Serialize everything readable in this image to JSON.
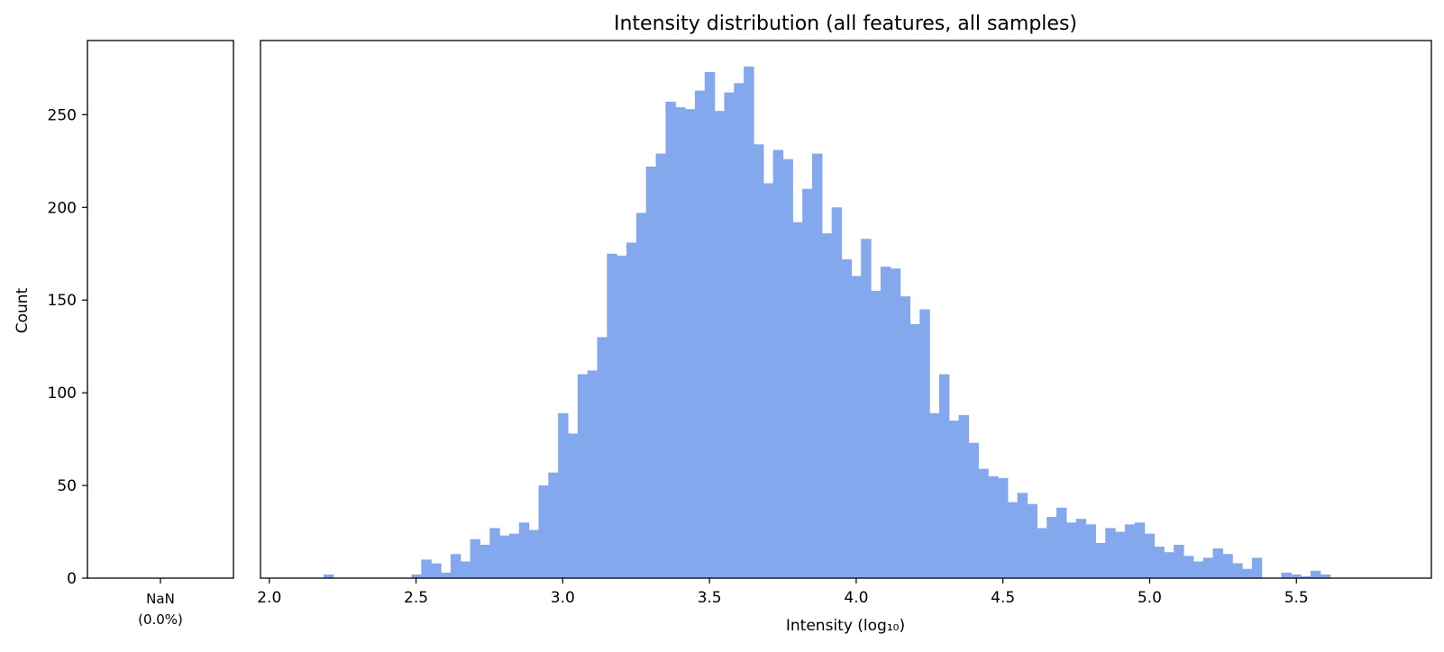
{
  "chart_data": {
    "type": "bar",
    "title": "Intensity distribution (all features, all samples)",
    "xlabel": "Intensity (log₁₀)",
    "ylabel": "Count",
    "xlim": [
      1.97,
      5.96
    ],
    "ylim": [
      0,
      290
    ],
    "xticks": [
      2.0,
      2.5,
      3.0,
      3.5,
      4.0,
      4.5,
      5.0,
      5.5
    ],
    "xtick_labels": [
      "2.0",
      "2.5",
      "3.0",
      "3.5",
      "4.0",
      "4.5",
      "5.0",
      "5.5"
    ],
    "yticks": [
      0,
      50,
      100,
      150,
      200,
      250
    ],
    "ytick_labels": [
      "0",
      "50",
      "100",
      "150",
      "200",
      "250"
    ],
    "grid": false,
    "bar_color": "#84a8ee",
    "bin_start": 1.985,
    "bin_width": 0.0333,
    "counts": [
      0,
      0,
      0,
      0,
      0,
      0,
      2,
      0,
      0,
      0,
      0,
      0,
      0,
      0,
      0,
      2,
      10,
      8,
      3,
      13,
      9,
      21,
      18,
      27,
      23,
      24,
      30,
      26,
      50,
      57,
      89,
      78,
      110,
      112,
      130,
      175,
      174,
      181,
      197,
      222,
      229,
      257,
      254,
      253,
      263,
      273,
      252,
      262,
      267,
      276,
      234,
      213,
      231,
      226,
      192,
      210,
      229,
      186,
      200,
      172,
      163,
      183,
      155,
      168,
      167,
      152,
      137,
      145,
      89,
      110,
      85,
      88,
      73,
      59,
      55,
      54,
      41,
      46,
      40,
      27,
      33,
      38,
      30,
      32,
      29,
      19,
      27,
      25,
      29,
      30,
      24,
      17,
      14,
      18,
      12,
      9,
      11,
      16,
      13,
      8,
      5,
      11,
      0,
      0,
      3,
      2,
      1,
      4,
      2
    ],
    "nan_panel": {
      "category_label": "NaN",
      "percent_label": "(0.0%)",
      "value": 0
    }
  }
}
